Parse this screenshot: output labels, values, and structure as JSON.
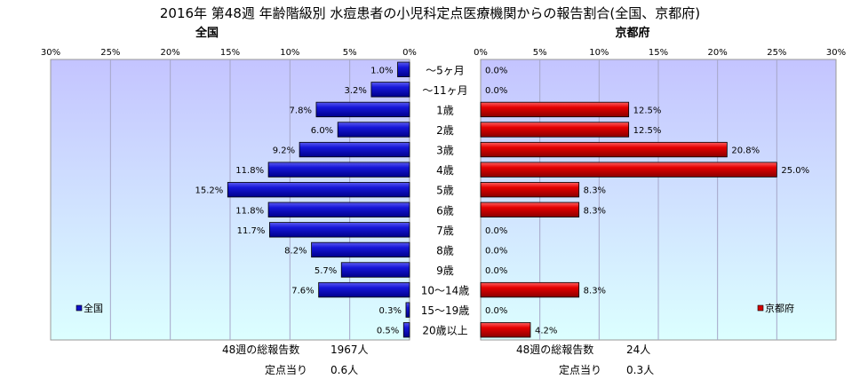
{
  "chart_data": {
    "type": "bar",
    "title": "2016年 第48週 年齢階級別 水痘患者の小児科定点医療機関からの報告割合(全国、京都府)",
    "categories": [
      "～5ヶ月",
      "～11ヶ月",
      "1歳",
      "2歳",
      "3歳",
      "4歳",
      "5歳",
      "6歳",
      "7歳",
      "8歳",
      "9歳",
      "10～14歳",
      "15～19歳",
      "20歳以上"
    ],
    "tick_labels": [
      "0%",
      "5%",
      "10%",
      "15%",
      "20%",
      "25%",
      "30%"
    ],
    "xlim": [
      0,
      30
    ],
    "orientation": "horizontal",
    "grid": true,
    "panels": [
      {
        "name": "全国",
        "title": "全国",
        "direction": "right-to-left",
        "color": "#1010c8",
        "background_color": "#c7c7ff",
        "legend_label": "全国",
        "legend_position": "bottom-left",
        "values": [
          1.0,
          3.2,
          7.8,
          6.0,
          9.2,
          11.8,
          15.2,
          11.8,
          11.7,
          8.2,
          5.7,
          7.6,
          0.3,
          0.5
        ],
        "labels": [
          "1.0%",
          "3.2%",
          "7.8%",
          "6.0%",
          "9.2%",
          "11.8%",
          "15.2%",
          "11.8%",
          "11.7%",
          "8.2%",
          "5.7%",
          "7.6%",
          "0.3%",
          "0.5%"
        ],
        "total_label": "48週の総報告数",
        "total_value": "1967人",
        "per_label": "定点当り",
        "per_value": "0.6人"
      },
      {
        "name": "京都府",
        "title": "京都府",
        "direction": "left-to-right",
        "color": "#d40000",
        "background_color": "#c7c7ff",
        "legend_label": "京都府",
        "legend_position": "bottom-right",
        "values": [
          0.0,
          0.0,
          12.5,
          12.5,
          20.8,
          25.0,
          8.3,
          8.3,
          0.0,
          0.0,
          0.0,
          8.3,
          0.0,
          4.2
        ],
        "labels": [
          "0.0%",
          "0.0%",
          "12.5%",
          "12.5%",
          "20.8%",
          "25.0%",
          "8.3%",
          "8.3%",
          "0.0%",
          "0.0%",
          "0.0%",
          "8.3%",
          "0.0%",
          "4.2%"
        ],
        "total_label": "48週の総報告数",
        "total_value": "24人",
        "per_label": "定点当り",
        "per_value": "0.3人"
      }
    ]
  }
}
